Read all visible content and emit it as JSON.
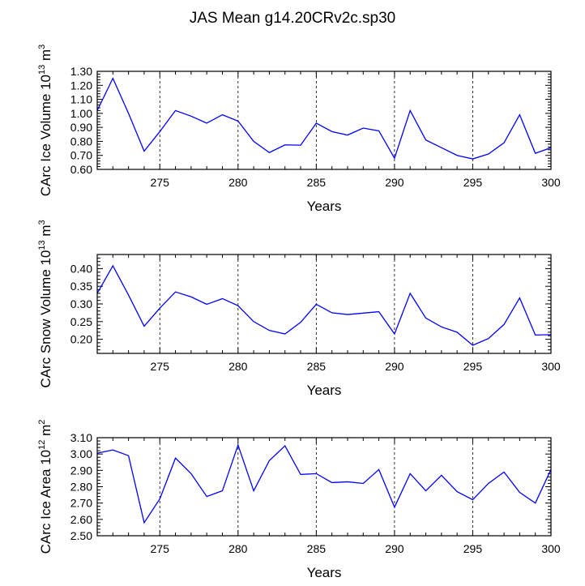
{
  "chart_data": {
    "title": "JAS Mean g14.20CRv2c.sp30",
    "panels": [
      {
        "type": "line",
        "ylabel_main": "CArc Ice Volume 10",
        "ylabel_exp": "13",
        "ylabel_unit": " m",
        "ylabel_unit_exp": "3",
        "xlabel": "Years",
        "xlim": [
          271,
          300
        ],
        "ylim": [
          0.6,
          1.3
        ],
        "yticks": [
          0.6,
          0.7,
          0.8,
          0.9,
          1.0,
          1.1,
          1.2,
          1.3
        ],
        "ytick_labels": [
          "0.60",
          "0.70",
          "0.80",
          "0.90",
          "1.00",
          "1.10",
          "1.20",
          "1.30"
        ],
        "xticks": [
          275,
          280,
          285,
          290,
          295,
          300
        ],
        "xtick_labels": [
          "275",
          "280",
          "285",
          "290",
          "295",
          "300"
        ],
        "grid_x": [
          275,
          280,
          285,
          290,
          295
        ],
        "color": "#0000ff",
        "x": [
          271,
          272,
          273,
          274,
          275,
          276,
          277,
          278,
          279,
          280,
          281,
          282,
          283,
          284,
          285,
          286,
          287,
          288,
          289,
          290,
          291,
          292,
          293,
          294,
          295,
          296,
          297,
          298,
          299,
          300
        ],
        "y": [
          1.02,
          1.25,
          1.0,
          0.73,
          0.87,
          1.02,
          0.98,
          0.93,
          0.99,
          0.945,
          0.8,
          0.72,
          0.775,
          0.773,
          0.93,
          0.87,
          0.845,
          0.895,
          0.875,
          0.68,
          1.02,
          0.81,
          0.755,
          0.7,
          0.675,
          0.71,
          0.79,
          0.99,
          0.715,
          0.755
        ]
      },
      {
        "type": "line",
        "ylabel_main": "CArc Snow Volume 10",
        "ylabel_exp": "13",
        "ylabel_unit": " m",
        "ylabel_unit_exp": "3",
        "xlabel": "Years",
        "xlim": [
          271,
          300
        ],
        "ylim": [
          0.16,
          0.44
        ],
        "yticks": [
          0.2,
          0.25,
          0.3,
          0.35,
          0.4
        ],
        "ytick_labels": [
          "0.20",
          "0.25",
          "0.30",
          "0.35",
          "0.40"
        ],
        "xticks": [
          275,
          280,
          285,
          290,
          295,
          300
        ],
        "xtick_labels": [
          "275",
          "280",
          "285",
          "290",
          "295",
          "300"
        ],
        "grid_x": [
          275,
          280,
          285,
          290,
          295
        ],
        "color": "#0000ff",
        "x": [
          271,
          272,
          273,
          274,
          275,
          276,
          277,
          278,
          279,
          280,
          281,
          282,
          283,
          284,
          285,
          286,
          287,
          288,
          289,
          290,
          291,
          292,
          293,
          294,
          295,
          296,
          297,
          298,
          299,
          300
        ],
        "y": [
          0.33,
          0.408,
          0.325,
          0.237,
          0.288,
          0.334,
          0.32,
          0.299,
          0.315,
          0.295,
          0.25,
          0.225,
          0.215,
          0.248,
          0.299,
          0.275,
          0.27,
          0.274,
          0.278,
          0.215,
          0.33,
          0.26,
          0.235,
          0.22,
          0.183,
          0.202,
          0.242,
          0.317,
          0.212,
          0.213
        ]
      },
      {
        "type": "line",
        "ylabel_main": "CArc Ice Area 10",
        "ylabel_exp": "12",
        "ylabel_unit": " m",
        "ylabel_unit_exp": "2",
        "xlabel": "Years",
        "xlim": [
          271,
          300
        ],
        "ylim": [
          2.5,
          3.1
        ],
        "yticks": [
          2.5,
          2.6,
          2.7,
          2.8,
          2.9,
          3.0,
          3.1
        ],
        "ytick_labels": [
          "2.50",
          "2.60",
          "2.70",
          "2.80",
          "2.90",
          "3.00",
          "3.10"
        ],
        "xticks": [
          275,
          280,
          285,
          290,
          295,
          300
        ],
        "xtick_labels": [
          "275",
          "280",
          "285",
          "290",
          "295",
          "300"
        ],
        "grid_x": [
          275,
          280,
          285,
          290,
          295
        ],
        "color": "#0000ff",
        "x": [
          271,
          272,
          273,
          274,
          275,
          276,
          277,
          278,
          279,
          280,
          281,
          282,
          283,
          284,
          285,
          286,
          287,
          288,
          289,
          290,
          291,
          292,
          293,
          294,
          295,
          296,
          297,
          298,
          299,
          300
        ],
        "y": [
          3.005,
          3.025,
          2.99,
          2.58,
          2.725,
          2.975,
          2.88,
          2.74,
          2.775,
          3.055,
          2.775,
          2.96,
          3.05,
          2.875,
          2.88,
          2.825,
          2.83,
          2.82,
          2.905,
          2.675,
          2.88,
          2.775,
          2.87,
          2.77,
          2.72,
          2.82,
          2.89,
          2.765,
          2.7,
          2.905
        ]
      }
    ]
  }
}
